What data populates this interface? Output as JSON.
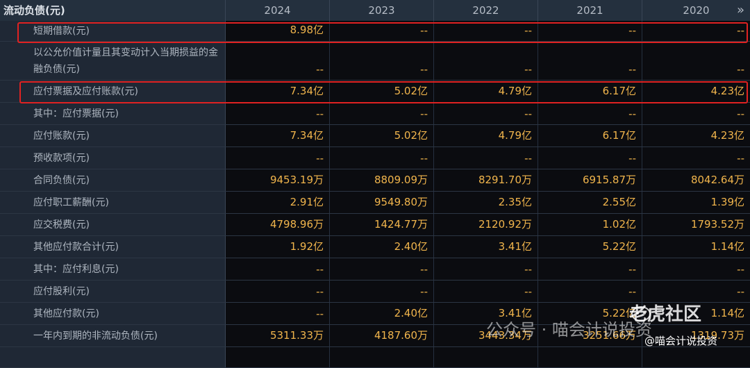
{
  "header": {
    "title": "流动负债(元)",
    "years": [
      "2024",
      "2023",
      "2022",
      "2021",
      "2020"
    ],
    "expand_glyph": "»"
  },
  "rows": [
    {
      "label": "短期借款(元)",
      "values": [
        "8.98亿",
        "--",
        "--",
        "--",
        "--"
      ]
    },
    {
      "label": "以公允价值计量且其变动计入当期损益的金融负债(元)",
      "values": [
        "--",
        "--",
        "--",
        "--",
        "--"
      ]
    },
    {
      "label": "应付票据及应付账款(元)",
      "values": [
        "7.34亿",
        "5.02亿",
        "4.79亿",
        "6.17亿",
        "4.23亿"
      ]
    },
    {
      "label": "其中：应付票据(元)",
      "values": [
        "--",
        "--",
        "--",
        "--",
        "--"
      ]
    },
    {
      "label": "应付账款(元)",
      "values": [
        "7.34亿",
        "5.02亿",
        "4.79亿",
        "6.17亿",
        "4.23亿"
      ]
    },
    {
      "label": "预收款项(元)",
      "values": [
        "--",
        "--",
        "--",
        "--",
        "--"
      ]
    },
    {
      "label": "合同负债(元)",
      "values": [
        "9453.19万",
        "8809.09万",
        "8291.70万",
        "6915.87万",
        "8042.64万"
      ]
    },
    {
      "label": "应付职工薪酬(元)",
      "values": [
        "2.91亿",
        "9549.80万",
        "2.35亿",
        "2.55亿",
        "1.39亿"
      ]
    },
    {
      "label": "应交税费(元)",
      "values": [
        "4798.96万",
        "1424.77万",
        "2120.92万",
        "1.02亿",
        "1793.52万"
      ]
    },
    {
      "label": "其他应付款合计(元)",
      "values": [
        "1.92亿",
        "2.40亿",
        "3.41亿",
        "5.22亿",
        "1.14亿"
      ]
    },
    {
      "label": "其中：应付利息(元)",
      "values": [
        "--",
        "--",
        "--",
        "--",
        "--"
      ]
    },
    {
      "label": "应付股利(元)",
      "values": [
        "--",
        "--",
        "--",
        "--",
        "--"
      ]
    },
    {
      "label": "其他应付款(元)",
      "values": [
        "--",
        "2.40亿",
        "3.41亿",
        "5.22亿",
        "1.14亿"
      ]
    },
    {
      "label": "一年内到期的非流动负债(元)",
      "values": [
        "5311.33万",
        "4187.60万",
        "3443.34万",
        "3251.66万",
        "1319.73万"
      ]
    },
    {
      "label": "",
      "values": [
        "",
        "",
        "",
        "",
        ""
      ]
    }
  ],
  "watermark": {
    "wechat": "公众号 · 喵会计说投资",
    "brand": "老虎社区",
    "handle": "@喵会计说投资"
  },
  "colors": {
    "value": "#f1b54c",
    "highlight": "#e02222",
    "header_bg": "#24303e",
    "label_bg": "#1f2835",
    "bg": "#0b0c10"
  }
}
